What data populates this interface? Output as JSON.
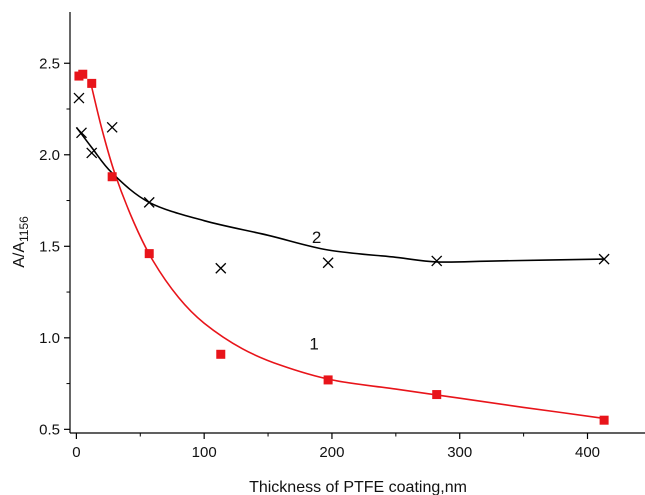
{
  "chart_data": {
    "type": "scatter",
    "title": "",
    "xlabel": "Thickness of PTFE coating,nm",
    "ylabel": {
      "main": "A/A",
      "sub": "1156"
    },
    "xlim": [
      -5,
      445
    ],
    "ylim": [
      0.48,
      2.78
    ],
    "xticks": [
      0,
      100,
      200,
      300,
      400
    ],
    "yticks": [
      0.5,
      1.0,
      1.5,
      2.0,
      2.5
    ],
    "ytick_labels": [
      "0.5",
      "1.0",
      "1.5",
      "2.0",
      "2.5"
    ],
    "grid": false,
    "series": [
      {
        "name": "1",
        "marker": "square",
        "color": "#e8141a",
        "points": [
          {
            "x": 2,
            "y": 2.43
          },
          {
            "x": 5,
            "y": 2.44
          },
          {
            "x": 12,
            "y": 2.39
          },
          {
            "x": 28,
            "y": 1.88
          },
          {
            "x": 57,
            "y": 1.46
          },
          {
            "x": 113,
            "y": 0.91
          },
          {
            "x": 197,
            "y": 0.77
          },
          {
            "x": 282,
            "y": 0.69
          },
          {
            "x": 413,
            "y": 0.55
          }
        ],
        "fit": [
          {
            "x": 12,
            "y": 2.37
          },
          {
            "x": 20,
            "y": 2.14
          },
          {
            "x": 30,
            "y": 1.9
          },
          {
            "x": 45,
            "y": 1.63
          },
          {
            "x": 60,
            "y": 1.42
          },
          {
            "x": 80,
            "y": 1.22
          },
          {
            "x": 100,
            "y": 1.08
          },
          {
            "x": 130,
            "y": 0.94
          },
          {
            "x": 160,
            "y": 0.85
          },
          {
            "x": 200,
            "y": 0.77
          },
          {
            "x": 250,
            "y": 0.72
          },
          {
            "x": 300,
            "y": 0.67
          },
          {
            "x": 350,
            "y": 0.62
          },
          {
            "x": 413,
            "y": 0.56
          }
        ],
        "label_at": {
          "x": 186,
          "y": 0.97
        }
      },
      {
        "name": "2",
        "marker": "x",
        "color": "#000000",
        "points": [
          {
            "x": 2,
            "y": 2.31
          },
          {
            "x": 4,
            "y": 2.12
          },
          {
            "x": 12,
            "y": 2.01
          },
          {
            "x": 28,
            "y": 2.15
          },
          {
            "x": 57,
            "y": 1.74
          },
          {
            "x": 113,
            "y": 1.38
          },
          {
            "x": 197,
            "y": 1.41
          },
          {
            "x": 282,
            "y": 1.42
          },
          {
            "x": 413,
            "y": 1.43
          }
        ],
        "fit": [
          {
            "x": 0,
            "y": 2.15
          },
          {
            "x": 12,
            "y": 2.04
          },
          {
            "x": 28,
            "y": 1.9
          },
          {
            "x": 57,
            "y": 1.74
          },
          {
            "x": 100,
            "y": 1.64
          },
          {
            "x": 150,
            "y": 1.56
          },
          {
            "x": 197,
            "y": 1.48
          },
          {
            "x": 250,
            "y": 1.44
          },
          {
            "x": 282,
            "y": 1.415
          },
          {
            "x": 330,
            "y": 1.42
          },
          {
            "x": 413,
            "y": 1.43
          }
        ],
        "label_at": {
          "x": 188,
          "y": 1.55
        }
      }
    ]
  }
}
